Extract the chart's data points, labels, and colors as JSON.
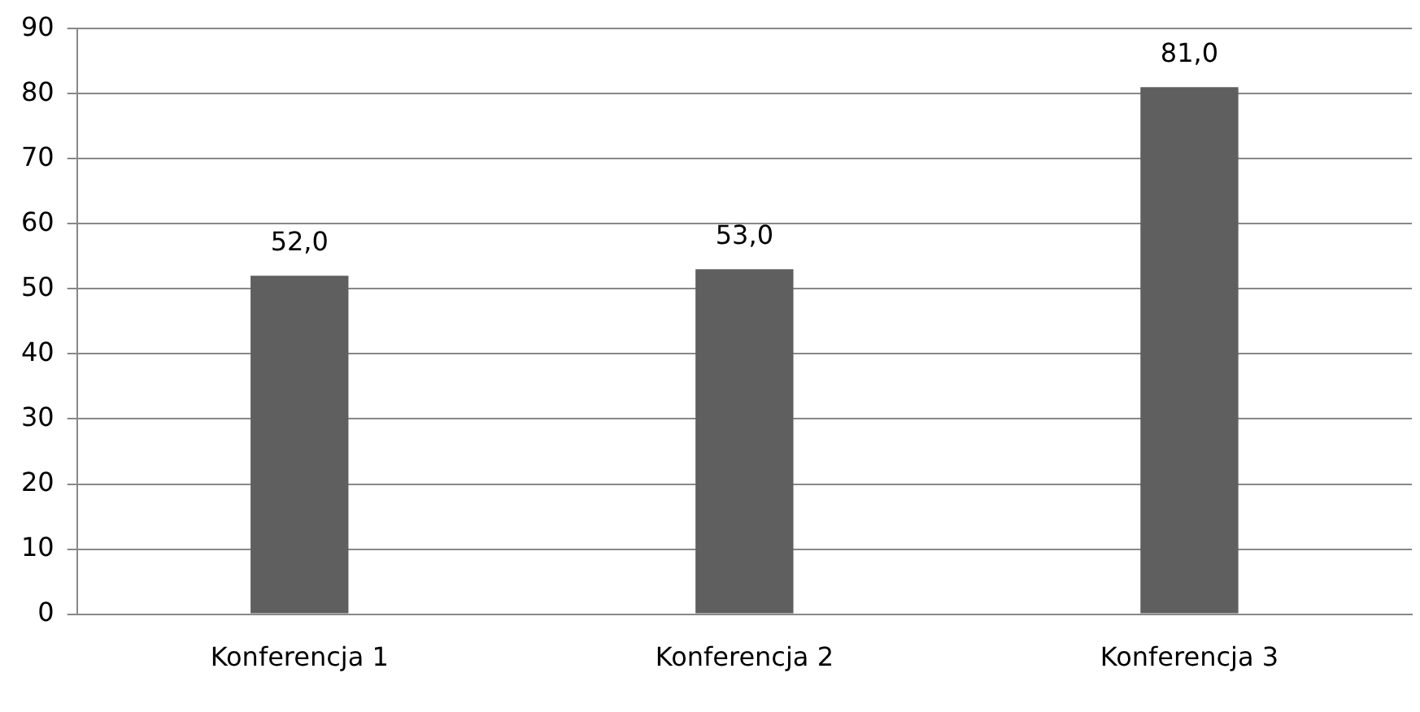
{
  "chart_data": {
    "type": "bar",
    "categories": [
      "Konferencja 1",
      "Konferencja 2",
      "Konferencja 3"
    ],
    "values": [
      52,
      53,
      81
    ],
    "color": "#5f5f5f",
    "value_labels": [
      "52,0",
      "53,0",
      "81,0"
    ],
    "ylim": [
      0,
      90
    ],
    "yticks": [
      0,
      10,
      20,
      30,
      40,
      50,
      60,
      70,
      80,
      90
    ],
    "grid": "y",
    "legend": false
  }
}
